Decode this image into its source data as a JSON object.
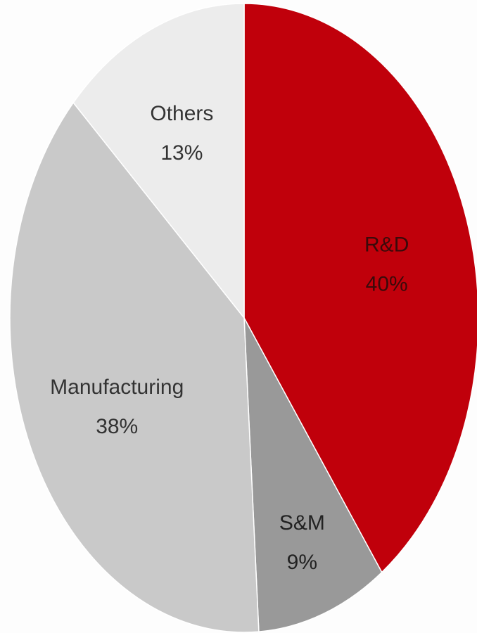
{
  "chart_data": {
    "type": "pie",
    "slices": [
      {
        "label": "R&D",
        "value": 40,
        "value_label": "40%",
        "color": "#c0000b",
        "label_color": "#3a0a0a"
      },
      {
        "label": "S&M",
        "value": 9,
        "value_label": "9%",
        "color": "#999999",
        "label_color": "#222222"
      },
      {
        "label": "Manufacturing",
        "value": 38,
        "value_label": "38%",
        "color": "#c9c9c9",
        "label_color": "#333333"
      },
      {
        "label": "Others",
        "value": 13,
        "value_label": "13%",
        "color": "#ececec",
        "label_color": "#333333"
      }
    ],
    "start": "top",
    "direction": "clockwise",
    "legend": "none"
  }
}
